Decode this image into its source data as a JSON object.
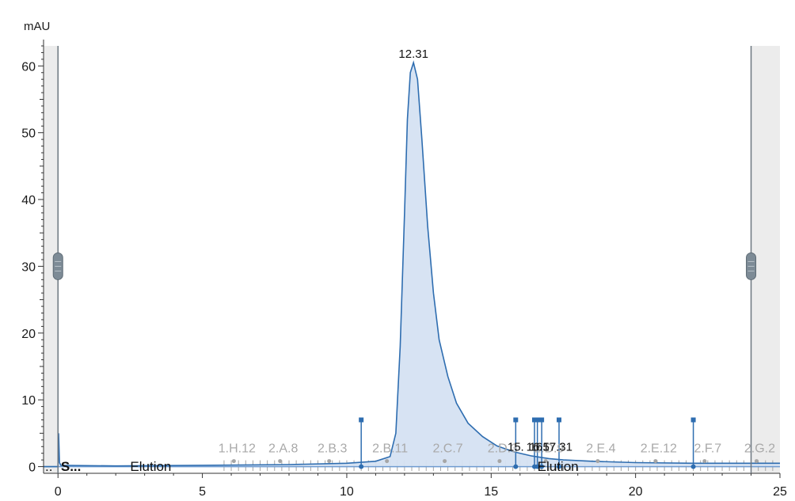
{
  "window": {
    "unit_label": "mAU"
  },
  "chart_data": {
    "type": "area",
    "ylabel": "mAU",
    "xlim": [
      -0.5,
      25
    ],
    "ylim": [
      -1,
      63
    ],
    "x_ticks": [
      0,
      5,
      10,
      15,
      20,
      25
    ],
    "y_ticks": [
      0,
      10,
      20,
      30,
      40,
      50,
      60
    ],
    "series": [
      {
        "color": "#2e6db0",
        "fill": "#d5e2f2",
        "x": [
          -0.5,
          0.0,
          0.02,
          0.05,
          0.1,
          2,
          5,
          8,
          10,
          11,
          11.5,
          11.7,
          11.85,
          12.0,
          12.1,
          12.2,
          12.31,
          12.45,
          12.6,
          12.8,
          13.0,
          13.2,
          13.5,
          13.8,
          14.2,
          14.7,
          15.2,
          15.8,
          16.4,
          17.0,
          17.5,
          18.5,
          20,
          22,
          24,
          25
        ],
        "y": [
          0.0,
          0.0,
          5.0,
          0.6,
          0.2,
          0.1,
          0.2,
          0.3,
          0.5,
          0.8,
          1.5,
          5,
          18,
          38,
          52,
          59,
          60.5,
          58,
          49,
          36,
          26,
          19,
          13.5,
          9.5,
          6.5,
          4.5,
          3.1,
          2.2,
          1.6,
          1.2,
          1.0,
          0.8,
          0.6,
          0.5,
          0.5,
          0.5
        ]
      }
    ],
    "peak_labels": [
      {
        "label": "12.31",
        "x": 12.31,
        "y": 60.5
      },
      {
        "label": "15.",
        "x": 15.85,
        "y": 1.9
      },
      {
        "label": "16",
        "x": 16.55,
        "y": 1.9
      },
      {
        "label": "16.57",
        "x": 16.73,
        "y": 1.9
      },
      {
        "label": "17.31",
        "x": 17.3,
        "y": 1.9
      }
    ],
    "peak_markers": [
      10.5,
      15.85,
      16.5,
      16.6,
      16.75,
      17.35,
      22.0
    ],
    "fractions": {
      "visible_labels": [
        {
          "label": "1.H.12",
          "x": 6.2
        },
        {
          "label": "2.A.8",
          "x": 7.8
        },
        {
          "label": "2.B.3",
          "x": 9.5
        },
        {
          "label": "2.B.11",
          "x": 11.5
        },
        {
          "label": "2.C.7",
          "x": 13.5
        },
        {
          "label": "2.D.3",
          "x": 15.4
        },
        {
          "label": "2.D.9",
          "x": 17.0
        },
        {
          "label": "2.E.4",
          "x": 18.8
        },
        {
          "label": "2.E.12",
          "x": 20.8
        },
        {
          "label": "2.F.7",
          "x": 22.5
        },
        {
          "label": "2.G.2",
          "x": 24.3
        }
      ],
      "start": 5.75,
      "end": 24.9,
      "step": 0.25
    },
    "phases": [
      {
        "label": "S...",
        "x": 0.1
      },
      {
        "label": "Elution",
        "x": 2.5
      },
      {
        "label": "Elution",
        "x": 16.6
      }
    ],
    "phase_prefix": "..",
    "window_markers": [
      0,
      24
    ]
  }
}
